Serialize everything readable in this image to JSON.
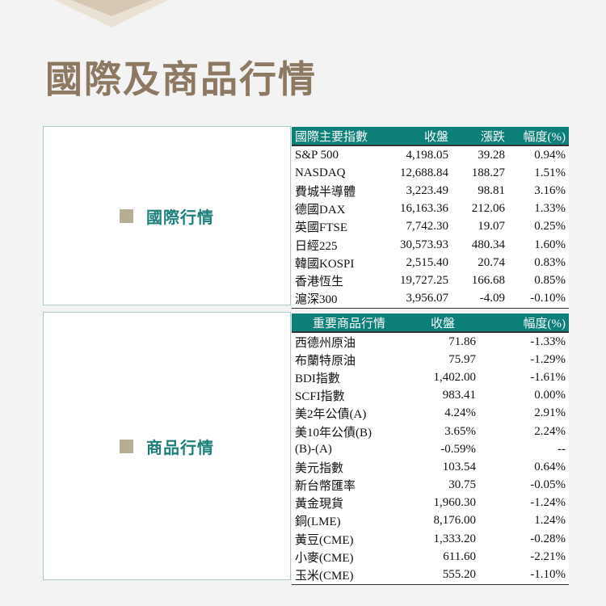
{
  "page": {
    "title": "國際及商品行情"
  },
  "international": {
    "section_label": "國際行情",
    "headers": [
      "國際主要指數",
      "收盤",
      "漲跌",
      "幅度(%)"
    ],
    "rows": [
      [
        "S&P 500",
        "4,198.05",
        "39.28",
        "0.94%"
      ],
      [
        "NASDAQ",
        "12,688.84",
        "188.27",
        "1.51%"
      ],
      [
        "費城半導體",
        "3,223.49",
        "98.81",
        "3.16%"
      ],
      [
        "德國DAX",
        "16,163.36",
        "212.06",
        "1.33%"
      ],
      [
        "英國FTSE",
        "7,742.30",
        "19.07",
        "0.25%"
      ],
      [
        "日經225",
        "30,573.93",
        "480.34",
        "1.60%"
      ],
      [
        "韓國KOSPI",
        "2,515.40",
        "20.74",
        "0.83%"
      ],
      [
        "香港恆生",
        "19,727.25",
        "166.68",
        "0.85%"
      ],
      [
        "滬深300",
        "3,956.07",
        "-4.09",
        "-0.10%"
      ]
    ]
  },
  "commodities": {
    "section_label": "商品行情",
    "headers": [
      "重要商品行情",
      "收盤",
      "幅度(%)"
    ],
    "rows": [
      [
        "西德州原油",
        "71.86",
        "-1.33%"
      ],
      [
        "布蘭特原油",
        "75.97",
        "-1.29%"
      ],
      [
        "BDI指數",
        "1,402.00",
        "-1.61%"
      ],
      [
        "SCFI指數",
        "983.41",
        "0.00%"
      ],
      [
        "美2年公債(A)",
        "4.24%",
        "2.91%"
      ],
      [
        "美10年公債(B)",
        "3.65%",
        "2.24%"
      ],
      [
        "(B)-(A)",
        "-0.59%",
        "--"
      ],
      [
        "美元指數",
        "103.54",
        "0.64%"
      ],
      [
        "新台幣匯率",
        "30.75",
        "-0.05%"
      ],
      [
        "黃金現貨",
        "1,960.30",
        "-1.24%"
      ],
      [
        "銅(LME)",
        "8,176.00",
        "1.24%"
      ],
      [
        "黃豆(CME)",
        "1,333.20",
        "-0.28%"
      ],
      [
        "小麥(CME)",
        "611.60",
        "-2.21%"
      ],
      [
        "玉米(CME)",
        "555.20",
        "-1.10%"
      ]
    ]
  }
}
